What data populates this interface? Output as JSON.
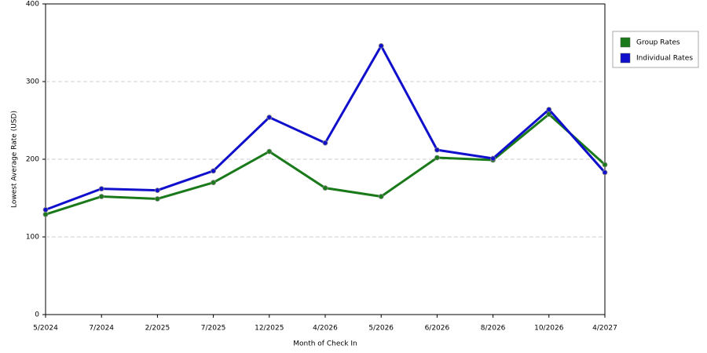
{
  "chart_data": {
    "type": "line",
    "x_label": "Month of Check In",
    "y_label": "Lowest Average Rate (USD)",
    "categories": [
      "5/2024",
      "7/2024",
      "2/2025",
      "7/2025",
      "12/2025",
      "4/2026",
      "5/2026",
      "6/2026",
      "8/2026",
      "10/2026",
      "4/2027"
    ],
    "series": [
      {
        "name": "Group Rates",
        "color": "#1a7a1a",
        "values": [
          129,
          152,
          149,
          170,
          210,
          163,
          152,
          202,
          199,
          258,
          193
        ]
      },
      {
        "name": "Individual Rates",
        "color": "#1010cc",
        "values": [
          135,
          162,
          160,
          185,
          254,
          221,
          346,
          212,
          201,
          264,
          183
        ]
      }
    ],
    "ylim": [
      0,
      400
    ],
    "yticks": [
      0,
      100,
      200,
      300,
      400
    ],
    "grid": true,
    "legend": "right"
  }
}
